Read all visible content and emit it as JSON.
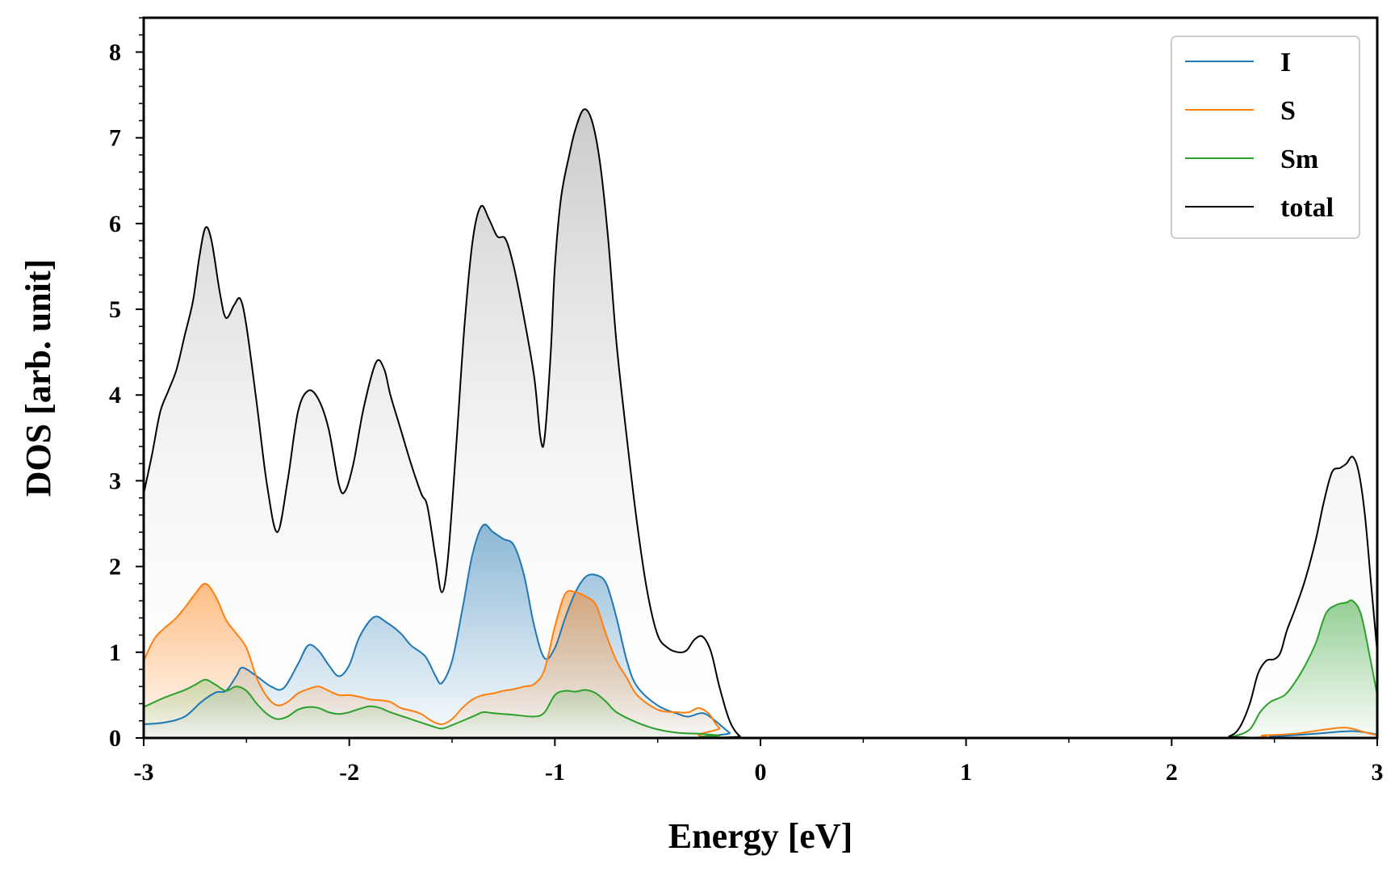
{
  "chart_data": {
    "type": "area",
    "title": "",
    "xlabel": "Energy [eV]",
    "ylabel": "DOS [arb. unit]",
    "xlim": [
      -3,
      3
    ],
    "ylim": [
      0,
      8.4
    ],
    "xticks": [
      -3,
      -2,
      -1,
      0,
      1,
      2,
      3
    ],
    "xtick_labels": [
      "-3",
      "-2",
      "-1",
      "0",
      "1",
      "2",
      "3"
    ],
    "yticks": [
      0,
      1,
      2,
      3,
      4,
      5,
      6,
      7,
      8
    ],
    "ytick_labels": [
      "0",
      "1",
      "2",
      "3",
      "4",
      "5",
      "6",
      "7",
      "8"
    ],
    "x_minor_step": 0.5,
    "y_minor_step": 0.2,
    "grid": false,
    "legend_position": "top-right",
    "series": [
      {
        "name": "I",
        "color": "#1f77b4",
        "fill": true,
        "points": [
          [
            -3.0,
            0.16
          ],
          [
            -2.9,
            0.18
          ],
          [
            -2.8,
            0.25
          ],
          [
            -2.72,
            0.42
          ],
          [
            -2.65,
            0.53
          ],
          [
            -2.6,
            0.55
          ],
          [
            -2.55,
            0.72
          ],
          [
            -2.52,
            0.82
          ],
          [
            -2.45,
            0.72
          ],
          [
            -2.38,
            0.6
          ],
          [
            -2.32,
            0.58
          ],
          [
            -2.25,
            0.86
          ],
          [
            -2.2,
            1.08
          ],
          [
            -2.15,
            1.02
          ],
          [
            -2.1,
            0.85
          ],
          [
            -2.05,
            0.72
          ],
          [
            -2.0,
            0.85
          ],
          [
            -1.95,
            1.18
          ],
          [
            -1.88,
            1.41
          ],
          [
            -1.82,
            1.35
          ],
          [
            -1.75,
            1.22
          ],
          [
            -1.7,
            1.08
          ],
          [
            -1.63,
            0.95
          ],
          [
            -1.58,
            0.72
          ],
          [
            -1.55,
            0.64
          ],
          [
            -1.5,
            0.9
          ],
          [
            -1.45,
            1.5
          ],
          [
            -1.4,
            2.15
          ],
          [
            -1.35,
            2.48
          ],
          [
            -1.3,
            2.4
          ],
          [
            -1.25,
            2.32
          ],
          [
            -1.2,
            2.25
          ],
          [
            -1.15,
            1.9
          ],
          [
            -1.1,
            1.3
          ],
          [
            -1.05,
            0.93
          ],
          [
            -1.0,
            1.05
          ],
          [
            -0.95,
            1.4
          ],
          [
            -0.9,
            1.7
          ],
          [
            -0.85,
            1.88
          ],
          [
            -0.8,
            1.9
          ],
          [
            -0.75,
            1.8
          ],
          [
            -0.7,
            1.4
          ],
          [
            -0.65,
            0.9
          ],
          [
            -0.6,
            0.6
          ],
          [
            -0.5,
            0.38
          ],
          [
            -0.4,
            0.28
          ],
          [
            -0.35,
            0.25
          ],
          [
            -0.28,
            0.29
          ],
          [
            -0.22,
            0.2
          ],
          [
            -0.15,
            0.06
          ],
          [
            -0.1,
            0.0
          ],
          [
            2.2,
            0.0
          ],
          [
            2.5,
            0.02
          ],
          [
            2.7,
            0.05
          ],
          [
            2.88,
            0.08
          ],
          [
            3.0,
            0.04
          ]
        ]
      },
      {
        "name": "S",
        "color": "#ff7f0e",
        "fill": true,
        "points": [
          [
            -3.0,
            0.9
          ],
          [
            -2.95,
            1.15
          ],
          [
            -2.9,
            1.28
          ],
          [
            -2.85,
            1.38
          ],
          [
            -2.8,
            1.52
          ],
          [
            -2.75,
            1.68
          ],
          [
            -2.7,
            1.8
          ],
          [
            -2.65,
            1.65
          ],
          [
            -2.6,
            1.38
          ],
          [
            -2.55,
            1.22
          ],
          [
            -2.5,
            1.05
          ],
          [
            -2.45,
            0.7
          ],
          [
            -2.4,
            0.48
          ],
          [
            -2.35,
            0.38
          ],
          [
            -2.3,
            0.42
          ],
          [
            -2.25,
            0.52
          ],
          [
            -2.2,
            0.57
          ],
          [
            -2.15,
            0.6
          ],
          [
            -2.1,
            0.55
          ],
          [
            -2.05,
            0.5
          ],
          [
            -2.0,
            0.5
          ],
          [
            -1.95,
            0.48
          ],
          [
            -1.9,
            0.45
          ],
          [
            -1.85,
            0.44
          ],
          [
            -1.8,
            0.42
          ],
          [
            -1.75,
            0.35
          ],
          [
            -1.7,
            0.32
          ],
          [
            -1.65,
            0.28
          ],
          [
            -1.6,
            0.2
          ],
          [
            -1.55,
            0.16
          ],
          [
            -1.5,
            0.22
          ],
          [
            -1.45,
            0.35
          ],
          [
            -1.4,
            0.45
          ],
          [
            -1.35,
            0.5
          ],
          [
            -1.3,
            0.52
          ],
          [
            -1.25,
            0.55
          ],
          [
            -1.2,
            0.57
          ],
          [
            -1.15,
            0.6
          ],
          [
            -1.1,
            0.63
          ],
          [
            -1.05,
            0.8
          ],
          [
            -1.0,
            1.3
          ],
          [
            -0.95,
            1.68
          ],
          [
            -0.9,
            1.7
          ],
          [
            -0.85,
            1.65
          ],
          [
            -0.8,
            1.55
          ],
          [
            -0.75,
            1.2
          ],
          [
            -0.7,
            0.9
          ],
          [
            -0.65,
            0.7
          ],
          [
            -0.6,
            0.5
          ],
          [
            -0.5,
            0.33
          ],
          [
            -0.4,
            0.3
          ],
          [
            -0.35,
            0.3
          ],
          [
            -0.3,
            0.35
          ],
          [
            -0.25,
            0.28
          ],
          [
            -0.2,
            0.12
          ],
          [
            -0.1,
            0.0
          ],
          [
            2.2,
            0.0
          ],
          [
            2.45,
            0.03
          ],
          [
            2.6,
            0.05
          ],
          [
            2.75,
            0.1
          ],
          [
            2.85,
            0.12
          ],
          [
            2.95,
            0.06
          ],
          [
            3.0,
            0.03
          ]
        ]
      },
      {
        "name": "Sm",
        "color": "#2ca02c",
        "fill": true,
        "points": [
          [
            -3.0,
            0.36
          ],
          [
            -2.9,
            0.47
          ],
          [
            -2.8,
            0.56
          ],
          [
            -2.75,
            0.62
          ],
          [
            -2.7,
            0.68
          ],
          [
            -2.65,
            0.62
          ],
          [
            -2.6,
            0.55
          ],
          [
            -2.55,
            0.6
          ],
          [
            -2.5,
            0.55
          ],
          [
            -2.45,
            0.4
          ],
          [
            -2.4,
            0.28
          ],
          [
            -2.35,
            0.22
          ],
          [
            -2.3,
            0.25
          ],
          [
            -2.25,
            0.33
          ],
          [
            -2.2,
            0.36
          ],
          [
            -2.15,
            0.35
          ],
          [
            -2.1,
            0.3
          ],
          [
            -2.05,
            0.28
          ],
          [
            -2.0,
            0.3
          ],
          [
            -1.95,
            0.34
          ],
          [
            -1.9,
            0.37
          ],
          [
            -1.85,
            0.35
          ],
          [
            -1.8,
            0.3
          ],
          [
            -1.7,
            0.22
          ],
          [
            -1.6,
            0.14
          ],
          [
            -1.55,
            0.11
          ],
          [
            -1.5,
            0.15
          ],
          [
            -1.4,
            0.25
          ],
          [
            -1.35,
            0.3
          ],
          [
            -1.3,
            0.29
          ],
          [
            -1.2,
            0.27
          ],
          [
            -1.1,
            0.25
          ],
          [
            -1.05,
            0.3
          ],
          [
            -1.0,
            0.5
          ],
          [
            -0.95,
            0.55
          ],
          [
            -0.9,
            0.54
          ],
          [
            -0.85,
            0.56
          ],
          [
            -0.8,
            0.52
          ],
          [
            -0.75,
            0.42
          ],
          [
            -0.7,
            0.3
          ],
          [
            -0.6,
            0.18
          ],
          [
            -0.5,
            0.1
          ],
          [
            -0.4,
            0.06
          ],
          [
            -0.3,
            0.05
          ],
          [
            -0.2,
            0.03
          ],
          [
            -0.1,
            0.0
          ],
          [
            2.2,
            0.0
          ],
          [
            2.3,
            0.02
          ],
          [
            2.38,
            0.1
          ],
          [
            2.43,
            0.3
          ],
          [
            2.48,
            0.42
          ],
          [
            2.55,
            0.5
          ],
          [
            2.6,
            0.65
          ],
          [
            2.65,
            0.85
          ],
          [
            2.7,
            1.1
          ],
          [
            2.75,
            1.45
          ],
          [
            2.8,
            1.55
          ],
          [
            2.85,
            1.58
          ],
          [
            2.88,
            1.6
          ],
          [
            2.92,
            1.45
          ],
          [
            2.96,
            1.0
          ],
          [
            3.0,
            0.5
          ]
        ]
      },
      {
        "name": "total",
        "color": "#000000",
        "fill": true,
        "points": [
          [
            -3.0,
            2.85
          ],
          [
            -2.96,
            3.3
          ],
          [
            -2.92,
            3.8
          ],
          [
            -2.88,
            4.05
          ],
          [
            -2.84,
            4.3
          ],
          [
            -2.8,
            4.7
          ],
          [
            -2.76,
            5.1
          ],
          [
            -2.73,
            5.6
          ],
          [
            -2.7,
            5.95
          ],
          [
            -2.67,
            5.8
          ],
          [
            -2.63,
            5.2
          ],
          [
            -2.6,
            4.9
          ],
          [
            -2.56,
            5.05
          ],
          [
            -2.53,
            5.12
          ],
          [
            -2.5,
            4.8
          ],
          [
            -2.45,
            3.9
          ],
          [
            -2.4,
            2.95
          ],
          [
            -2.35,
            2.4
          ],
          [
            -2.3,
            3.0
          ],
          [
            -2.25,
            3.8
          ],
          [
            -2.2,
            4.05
          ],
          [
            -2.15,
            3.95
          ],
          [
            -2.1,
            3.6
          ],
          [
            -2.05,
            2.95
          ],
          [
            -2.02,
            2.88
          ],
          [
            -1.98,
            3.2
          ],
          [
            -1.93,
            3.85
          ],
          [
            -1.87,
            4.38
          ],
          [
            -1.83,
            4.3
          ],
          [
            -1.8,
            4.0
          ],
          [
            -1.75,
            3.6
          ],
          [
            -1.7,
            3.2
          ],
          [
            -1.65,
            2.85
          ],
          [
            -1.62,
            2.7
          ],
          [
            -1.58,
            2.1
          ],
          [
            -1.55,
            1.7
          ],
          [
            -1.52,
            2.1
          ],
          [
            -1.48,
            3.4
          ],
          [
            -1.44,
            4.8
          ],
          [
            -1.4,
            5.8
          ],
          [
            -1.36,
            6.2
          ],
          [
            -1.32,
            6.05
          ],
          [
            -1.28,
            5.85
          ],
          [
            -1.24,
            5.82
          ],
          [
            -1.2,
            5.5
          ],
          [
            -1.15,
            4.9
          ],
          [
            -1.1,
            4.2
          ],
          [
            -1.07,
            3.5
          ],
          [
            -1.05,
            3.5
          ],
          [
            -1.02,
            4.5
          ],
          [
            -1.0,
            5.5
          ],
          [
            -0.97,
            6.3
          ],
          [
            -0.93,
            6.8
          ],
          [
            -0.9,
            7.1
          ],
          [
            -0.86,
            7.33
          ],
          [
            -0.82,
            7.2
          ],
          [
            -0.78,
            6.7
          ],
          [
            -0.74,
            5.8
          ],
          [
            -0.7,
            4.6
          ],
          [
            -0.65,
            3.5
          ],
          [
            -0.6,
            2.5
          ],
          [
            -0.55,
            1.7
          ],
          [
            -0.5,
            1.2
          ],
          [
            -0.45,
            1.05
          ],
          [
            -0.4,
            1.0
          ],
          [
            -0.36,
            1.02
          ],
          [
            -0.32,
            1.15
          ],
          [
            -0.28,
            1.18
          ],
          [
            -0.24,
            1.0
          ],
          [
            -0.2,
            0.6
          ],
          [
            -0.15,
            0.2
          ],
          [
            -0.1,
            0.02
          ],
          [
            -0.05,
            0.0
          ],
          [
            2.2,
            0.0
          ],
          [
            2.28,
            0.02
          ],
          [
            2.33,
            0.12
          ],
          [
            2.38,
            0.4
          ],
          [
            2.42,
            0.75
          ],
          [
            2.46,
            0.9
          ],
          [
            2.5,
            0.92
          ],
          [
            2.53,
            1.0
          ],
          [
            2.56,
            1.25
          ],
          [
            2.6,
            1.5
          ],
          [
            2.65,
            1.85
          ],
          [
            2.7,
            2.3
          ],
          [
            2.74,
            2.75
          ],
          [
            2.78,
            3.1
          ],
          [
            2.82,
            3.15
          ],
          [
            2.85,
            3.2
          ],
          [
            2.88,
            3.28
          ],
          [
            2.91,
            3.1
          ],
          [
            2.94,
            2.6
          ],
          [
            2.97,
            1.8
          ],
          [
            3.0,
            1.0
          ]
        ]
      }
    ]
  }
}
